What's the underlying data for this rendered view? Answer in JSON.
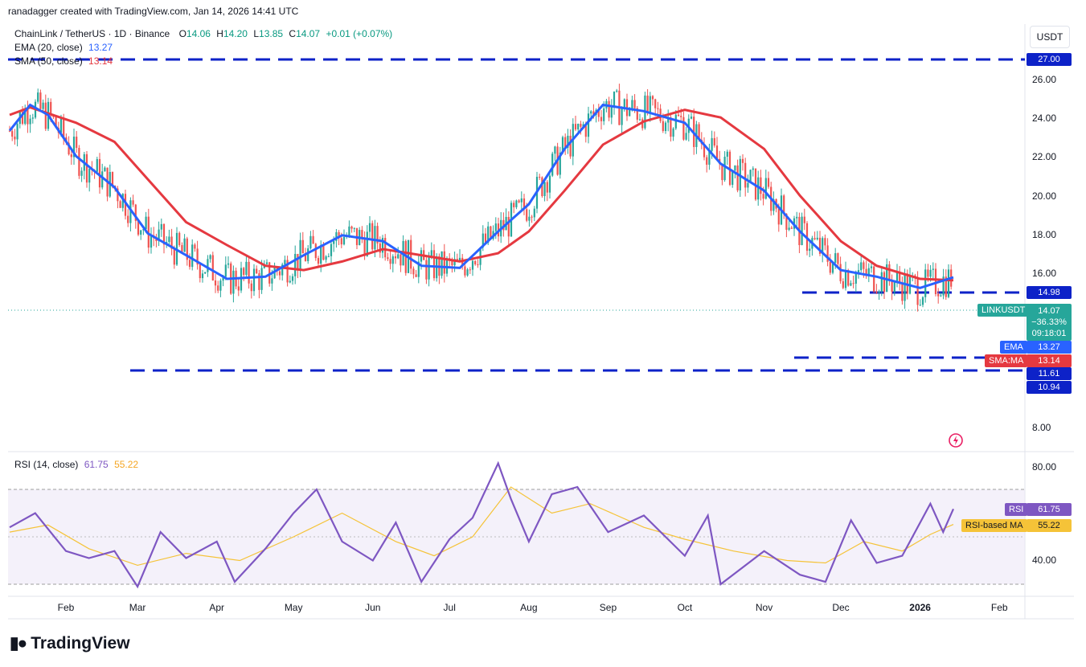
{
  "header": {
    "created_by": "ranadagger created with TradingView.com, Jan 14, 2026 14:41 UTC"
  },
  "legend": {
    "symbol": "ChainLink / TetherUS · 1D · Binance",
    "open_label": "O",
    "open": "14.06",
    "high_label": "H",
    "high": "14.20",
    "low_label": "L",
    "low": "13.85",
    "close_label": "C",
    "close": "14.07",
    "change": "+0.01 (+0.07%)",
    "ema_label": "EMA (20, close)",
    "ema_value": "13.27",
    "sma_label": "SMA (50, close)",
    "sma_value": "13.14",
    "rsi_label": "RSI (14, close)",
    "rsi_value": "61.75",
    "rsi_ma_value": "55.22"
  },
  "price_axis": {
    "currency_button": "USDT",
    "ticks": [
      "26.00",
      "24.00",
      "22.00",
      "20.00",
      "18.00",
      "16.00",
      "8.00"
    ],
    "rsi_ticks": [
      "80.00",
      "40.00"
    ]
  },
  "tags": {
    "level_27": "27.00",
    "level_1498": "14.98",
    "level_1161": "11.61",
    "level_1094": "10.94",
    "symbol_tag": "LINKUSDT",
    "last_price": "14.07",
    "pct_change": "−36.33%",
    "countdown": "09:18:01",
    "ema_tag": "EMA",
    "ema_value": "13.27",
    "sma_tag": "SMA:MA",
    "sma_value": "13.14",
    "rsi_tag": "RSI",
    "rsi_value": "61.75",
    "rsi_ma_tag": "RSI-based MA",
    "rsi_ma_value": "55.22"
  },
  "time_axis": [
    "Feb",
    "Mar",
    "Apr",
    "May",
    "Jun",
    "Jul",
    "Aug",
    "Sep",
    "Oct",
    "Nov",
    "Dec",
    "2026",
    "Feb"
  ],
  "footer": {
    "brand": "TradingView"
  },
  "colors": {
    "up": "#26a69a",
    "down": "#ef5350",
    "ema": "#2962ff",
    "sma": "#e53940",
    "level": "#0d22c8",
    "rsi": "#7e57c2",
    "rsi_ma": "#f5c338",
    "rsi_band": "#ede7f6"
  },
  "chart_data": [
    {
      "type": "candlestick",
      "title": "ChainLink / TetherUS · 1D · Binance",
      "y_scale": "log",
      "ylim": [
        7.8,
        28.5
      ],
      "horizontal_levels": [
        27.0,
        14.98,
        11.61,
        10.94
      ],
      "series": [
        {
          "name": "EMA (20, close)",
          "points": [
            [
              "2025-01-10",
              21.8
            ],
            [
              "2025-01-18",
              23.8
            ],
            [
              "2025-01-25",
              23.0
            ],
            [
              "2025-02-05",
              20.0
            ],
            [
              "2025-02-20",
              18.0
            ],
            [
              "2025-03-05",
              15.4
            ],
            [
              "2025-03-20",
              14.3
            ],
            [
              "2025-04-05",
              13.2
            ],
            [
              "2025-04-20",
              13.3
            ],
            [
              "2025-05-05",
              14.3
            ],
            [
              "2025-05-20",
              15.3
            ],
            [
              "2025-06-05",
              15.0
            ],
            [
              "2025-06-20",
              13.8
            ],
            [
              "2025-07-05",
              13.7
            ],
            [
              "2025-07-20",
              15.5
            ],
            [
              "2025-08-01",
              17.0
            ],
            [
              "2025-08-15",
              20.5
            ],
            [
              "2025-08-30",
              23.8
            ],
            [
              "2025-09-15",
              23.3
            ],
            [
              "2025-10-01",
              22.4
            ],
            [
              "2025-10-15",
              19.5
            ],
            [
              "2025-11-01",
              17.8
            ],
            [
              "2025-11-15",
              15.5
            ],
            [
              "2025-12-01",
              13.6
            ],
            [
              "2025-12-15",
              13.3
            ],
            [
              "2026-01-01",
              12.8
            ],
            [
              "2026-01-14",
              13.27
            ]
          ]
        },
        {
          "name": "SMA (50, close)",
          "points": [
            [
              "2025-01-10",
              23.0
            ],
            [
              "2025-01-18",
              23.6
            ],
            [
              "2025-02-05",
              22.4
            ],
            [
              "2025-02-20",
              21.0
            ],
            [
              "2025-03-05",
              18.5
            ],
            [
              "2025-03-20",
              16.0
            ],
            [
              "2025-04-05",
              14.8
            ],
            [
              "2025-04-20",
              13.8
            ],
            [
              "2025-05-05",
              13.6
            ],
            [
              "2025-05-20",
              14.0
            ],
            [
              "2025-06-05",
              14.6
            ],
            [
              "2025-06-20",
              14.3
            ],
            [
              "2025-07-05",
              14.0
            ],
            [
              "2025-07-20",
              14.4
            ],
            [
              "2025-08-01",
              15.5
            ],
            [
              "2025-08-15",
              17.8
            ],
            [
              "2025-08-30",
              20.8
            ],
            [
              "2025-09-15",
              22.5
            ],
            [
              "2025-10-01",
              23.4
            ],
            [
              "2025-10-15",
              22.8
            ],
            [
              "2025-11-01",
              20.5
            ],
            [
              "2025-11-15",
              17.5
            ],
            [
              "2025-12-01",
              15.0
            ],
            [
              "2025-12-15",
              13.8
            ],
            [
              "2026-01-01",
              13.2
            ],
            [
              "2026-01-14",
              13.14
            ]
          ]
        }
      ]
    },
    {
      "type": "line",
      "title": "RSI (14, close)",
      "ylim": [
        25,
        85
      ],
      "bands": [
        30,
        70
      ],
      "series": [
        {
          "name": "RSI (14, close)",
          "points": [
            [
              "2025-01-10",
              54
            ],
            [
              "2025-01-20",
              60
            ],
            [
              "2025-02-01",
              44
            ],
            [
              "2025-02-10",
              41
            ],
            [
              "2025-02-20",
              44
            ],
            [
              "2025-03-01",
              29
            ],
            [
              "2025-03-10",
              52
            ],
            [
              "2025-03-20",
              41
            ],
            [
              "2025-04-01",
              48
            ],
            [
              "2025-04-08",
              31
            ],
            [
              "2025-04-20",
              45
            ],
            [
              "2025-05-01",
              60
            ],
            [
              "2025-05-10",
              70
            ],
            [
              "2025-05-20",
              48
            ],
            [
              "2025-06-01",
              40
            ],
            [
              "2025-06-10",
              56
            ],
            [
              "2025-06-20",
              31
            ],
            [
              "2025-07-01",
              49
            ],
            [
              "2025-07-10",
              58
            ],
            [
              "2025-07-20",
              81
            ],
            [
              "2025-07-25",
              66
            ],
            [
              "2025-08-01",
              48
            ],
            [
              "2025-08-10",
              68
            ],
            [
              "2025-08-20",
              71
            ],
            [
              "2025-09-01",
              52
            ],
            [
              "2025-09-15",
              59
            ],
            [
              "2025-10-01",
              42
            ],
            [
              "2025-10-10",
              59
            ],
            [
              "2025-10-15",
              30
            ],
            [
              "2025-11-01",
              44
            ],
            [
              "2025-11-15",
              34
            ],
            [
              "2025-11-25",
              31
            ],
            [
              "2025-12-05",
              57
            ],
            [
              "2025-12-15",
              39
            ],
            [
              "2025-12-25",
              42
            ],
            [
              "2026-01-05",
              64
            ],
            [
              "2026-01-10",
              52
            ],
            [
              "2026-01-14",
              61.75
            ]
          ]
        },
        {
          "name": "RSI-based MA",
          "points": [
            [
              "2025-01-10",
              52
            ],
            [
              "2025-01-25",
              55
            ],
            [
              "2025-02-10",
              45
            ],
            [
              "2025-03-01",
              38
            ],
            [
              "2025-03-20",
              43
            ],
            [
              "2025-04-10",
              40
            ],
            [
              "2025-05-01",
              50
            ],
            [
              "2025-05-20",
              60
            ],
            [
              "2025-06-10",
              48
            ],
            [
              "2025-06-25",
              42
            ],
            [
              "2025-07-10",
              50
            ],
            [
              "2025-07-25",
              71
            ],
            [
              "2025-08-10",
              60
            ],
            [
              "2025-08-25",
              64
            ],
            [
              "2025-09-15",
              54
            ],
            [
              "2025-10-01",
              49
            ],
            [
              "2025-10-20",
              44
            ],
            [
              "2025-11-10",
              40
            ],
            [
              "2025-11-25",
              39
            ],
            [
              "2025-12-10",
              48
            ],
            [
              "2025-12-25",
              44
            ],
            [
              "2026-01-05",
              51
            ],
            [
              "2026-01-14",
              55.22
            ]
          ]
        }
      ]
    }
  ]
}
